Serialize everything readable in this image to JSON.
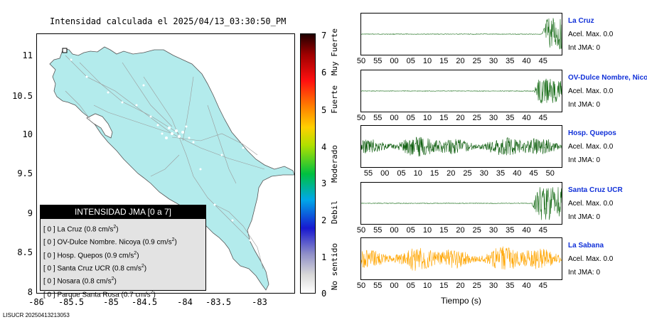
{
  "map": {
    "title": "Intensidad calculada el 2025/04/13_03:30:50_PM",
    "yticks": [
      "11",
      "10.5",
      "10",
      "9.5",
      "9",
      "8.5",
      "8"
    ],
    "xticks": [
      "-86",
      "-85.5",
      "-85",
      "-84.5",
      "-84",
      "-83.5",
      "-83"
    ],
    "land_color": "#b3ebec",
    "legend": {
      "title": "INTENSIDAD JMA [0 a 7]",
      "items": [
        {
          "level": "[ 0 ]",
          "name": "La Cruz",
          "accel": "(0.8 cm/s",
          "sup": "2",
          "close": ")"
        },
        {
          "level": "[ 0 ]",
          "name": "OV-Dulce Nombre. Nicoya",
          "accel": "(0.9 cm/s",
          "sup": "2",
          "close": ")"
        },
        {
          "level": "[ 0 ]",
          "name": "Hosp. Quepos",
          "accel": "(0.9 cm/s",
          "sup": "2",
          "close": ")"
        },
        {
          "level": "[ 0 ]",
          "name": "Santa Cruz UCR",
          "accel": "(0.8 cm/s",
          "sup": "2",
          "close": ")"
        },
        {
          "level": "[ 0 ]",
          "name": "Nosara",
          "accel": "(0.8 cm/s",
          "sup": "2",
          "close": ")"
        },
        {
          "level": "[ 0 ]",
          "name": "Parque Santa Rosa",
          "accel": "(0.7 cm/s",
          "sup": "2",
          "close": ")"
        }
      ]
    }
  },
  "colorbar": {
    "numbers": [
      "7",
      "6",
      "5",
      "4",
      "3",
      "2",
      "1",
      "0"
    ],
    "words": [
      "Muy Fuerte",
      "Fuerte",
      "Moderado",
      "Debil",
      "No sentido"
    ]
  },
  "footer": "LISUCR 20250413213053",
  "traces": {
    "xlabel": "Tiempo (s)",
    "stations": [
      {
        "name": "La Cruz",
        "accel": "Acel. Max. 0.0",
        "jma": "Int JMA: 0",
        "color": "#1a6e1a",
        "onset": 0.9,
        "amp": 0.9,
        "ticks": [
          "50",
          "55",
          "00",
          "05",
          "10",
          "15",
          "20",
          "25",
          "30",
          "35",
          "40",
          "45"
        ]
      },
      {
        "name": "OV-Dulce Nombre, Nicoya",
        "accel": "Acel. Max. 0.0",
        "jma": "Int JMA: 0",
        "color": "#1a6e1a",
        "onset": 0.86,
        "amp": 0.7,
        "ticks": [
          "50",
          "55",
          "00",
          "05",
          "10",
          "15",
          "20",
          "25",
          "30",
          "35",
          "40",
          "45"
        ]
      },
      {
        "name": "Hosp. Quepos",
        "accel": "Acel. Max. 0.0",
        "jma": "Int JMA: 0",
        "color": "#0e5e0e",
        "onset": 0.0,
        "amp": 0.6,
        "ticks": [
          "55",
          "00",
          "05",
          "10",
          "15",
          "20",
          "25",
          "30",
          "35",
          "40",
          "45",
          "50"
        ]
      },
      {
        "name": "Santa Cruz UCR",
        "accel": "Acel. Max. 0.0",
        "jma": "Int JMA: 0",
        "color": "#1a6e1a",
        "onset": 0.85,
        "amp": 0.9,
        "ticks": [
          "50",
          "55",
          "00",
          "05",
          "10",
          "15",
          "20",
          "25",
          "30",
          "35",
          "40",
          "45"
        ]
      },
      {
        "name": "La Sabana",
        "accel": "Acel. Max. 0.0",
        "jma": "Int JMA: 0",
        "color": "#ffa500",
        "onset": 0.0,
        "amp": 0.75,
        "ticks": [
          "50",
          "55",
          "00",
          "05",
          "10",
          "15",
          "20",
          "25",
          "30",
          "35",
          "40",
          "45"
        ]
      }
    ]
  }
}
